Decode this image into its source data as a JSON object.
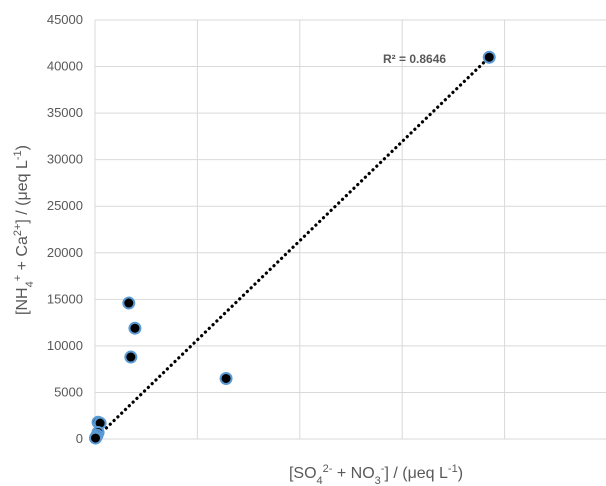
{
  "chart_data": {
    "type": "scatter",
    "title": "",
    "xlabel": {
      "parts": [
        {
          "t": "[SO"
        },
        {
          "t": "4",
          "sub": true
        },
        {
          "t": "2-",
          "sup": true
        },
        {
          "t": " + NO"
        },
        {
          "t": "3",
          "sub": true
        },
        {
          "t": "-",
          "sup": true
        },
        {
          "t": "] / (μeq L"
        },
        {
          "t": "-1",
          "sup": true
        },
        {
          "t": ")"
        }
      ]
    },
    "ylabel": {
      "parts": [
        {
          "t": "[NH"
        },
        {
          "t": "4",
          "sub": true
        },
        {
          "t": "+",
          "sup": true
        },
        {
          "t": " + Ca"
        },
        {
          "t": "2+",
          "sup": true
        },
        {
          "t": "] / (μeq L"
        },
        {
          "t": "-1",
          "sup": true
        },
        {
          "t": ")"
        }
      ]
    },
    "xlim": [
      0,
      50000
    ],
    "ylim": [
      0,
      45000
    ],
    "x_gridlines": [
      0,
      10000,
      20000,
      30000,
      40000,
      50000
    ],
    "y_ticks": [
      0,
      5000,
      10000,
      15000,
      20000,
      25000,
      30000,
      35000,
      40000,
      45000
    ],
    "y_tick_labels": [
      "0",
      "5000",
      "10000",
      "15000",
      "20000",
      "25000",
      "30000",
      "35000",
      "40000",
      "45000"
    ],
    "grid": true,
    "points": [
      {
        "x": 38500,
        "y": 41000
      },
      {
        "x": 3300,
        "y": 14600
      },
      {
        "x": 3900,
        "y": 11900
      },
      {
        "x": 3500,
        "y": 8800
      },
      {
        "x": 12800,
        "y": 6500
      },
      {
        "x": 300,
        "y": 1800
      },
      {
        "x": 500,
        "y": 1700
      },
      {
        "x": 300,
        "y": 700
      },
      {
        "x": 200,
        "y": 400
      },
      {
        "x": 100,
        "y": 200
      },
      {
        "x": 50,
        "y": 100
      }
    ],
    "trendline": {
      "type": "linear",
      "style": "dotted",
      "x_start": 0,
      "y_start": 0,
      "x_end": 38500,
      "y_end": 41000
    },
    "annotation": "R² = 0.8646",
    "marker_fill": "#000000",
    "marker_edge": "#5b9bd5",
    "grid_color": "#d9d9d9",
    "text_color": "#595959"
  }
}
